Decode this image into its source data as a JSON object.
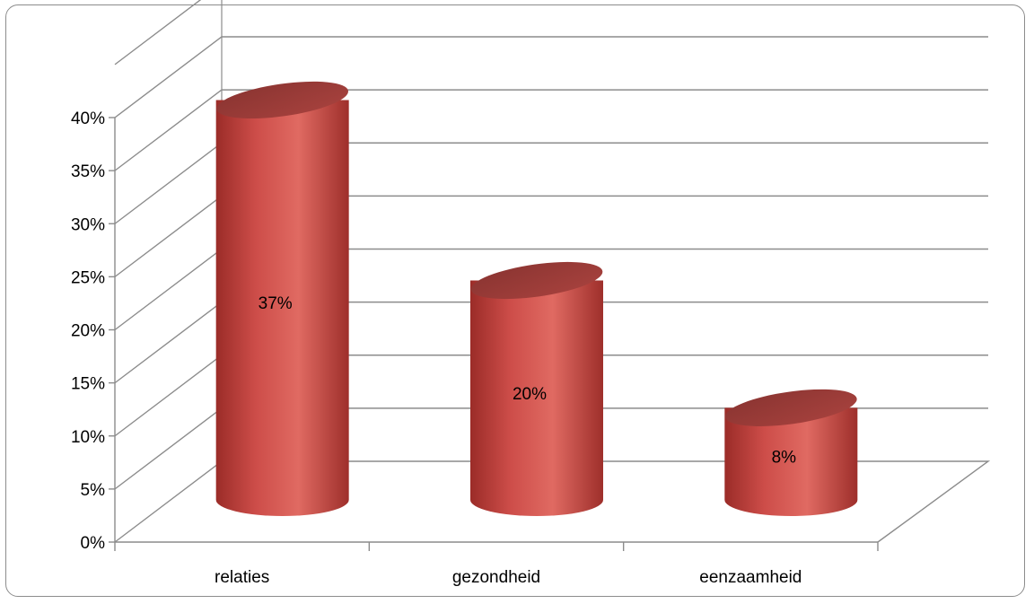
{
  "chart_data": {
    "type": "bar",
    "style": "3d-cylinder",
    "categories": [
      "relaties",
      "gezondheid",
      "eenzaamheid"
    ],
    "values": [
      37,
      20,
      8
    ],
    "data_labels": [
      "37%",
      "20%",
      "8%"
    ],
    "ylim": [
      0,
      40
    ],
    "y_ticks": [
      "0%",
      "5%",
      "10%",
      "15%",
      "20%",
      "25%",
      "30%",
      "35%",
      "40%"
    ],
    "grid": true,
    "legend": "none",
    "bar_color": "#c0504d"
  }
}
